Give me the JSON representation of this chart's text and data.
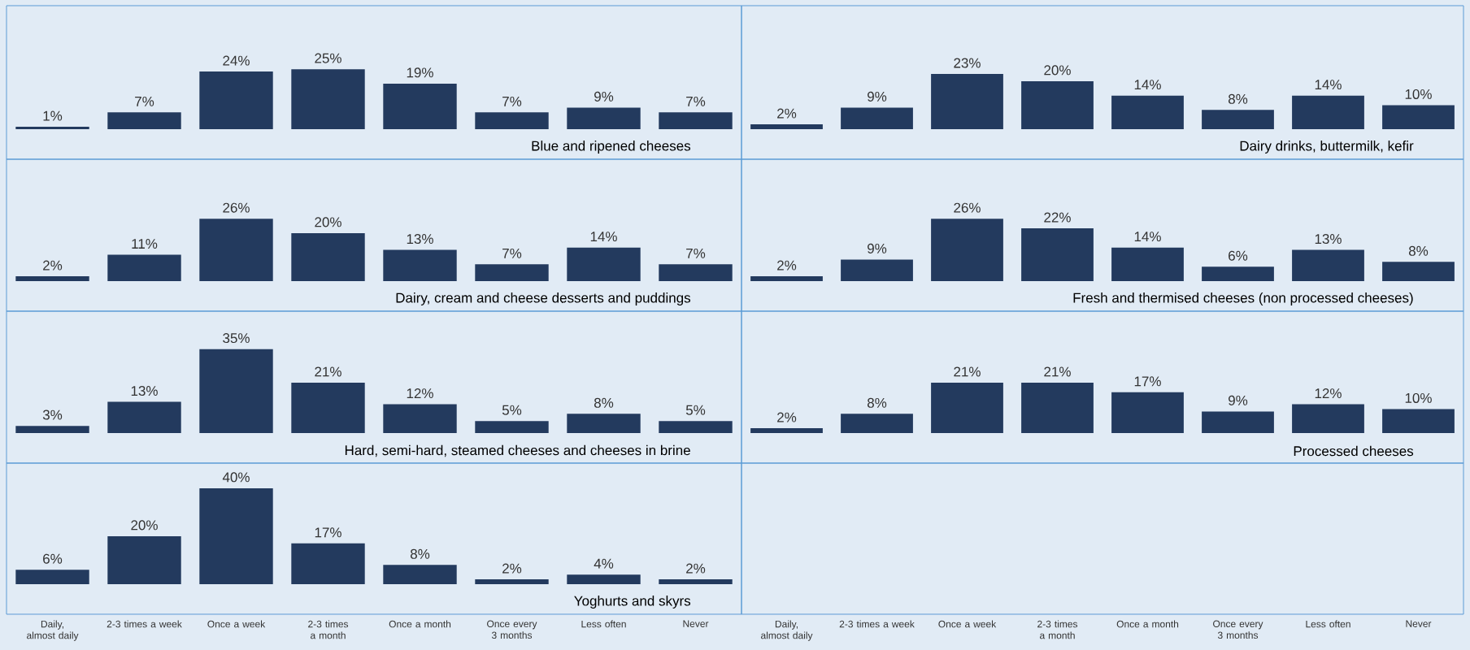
{
  "chart_data": [
    {
      "type": "bar",
      "categories": [
        null,
        null,
        null,
        null,
        null,
        null,
        null,
        null
      ],
      "values": [
        1,
        7,
        24,
        25,
        19,
        7,
        9,
        7
      ],
      "value_labels": [
        "1%",
        "7%",
        "24%",
        "25%",
        "19%",
        "7%",
        "9%",
        "7%"
      ],
      "color": "#233a5e",
      "annotations": [
        "Blue and ripened cheeses"
      ],
      "tick_labels": false
    },
    {
      "type": "bar",
      "categories": [
        null,
        null,
        null,
        null,
        null,
        null,
        null,
        null
      ],
      "values": [
        2,
        9,
        23,
        20,
        14,
        8,
        14,
        10
      ],
      "value_labels": [
        "2%",
        "9%",
        "23%",
        "20%",
        "14%",
        "8%",
        "14%",
        "10%"
      ],
      "color": "#233a5e",
      "annotations": [
        "Dairy drinks, buttermilk, kefir"
      ],
      "tick_labels": false
    },
    {
      "type": "bar",
      "categories": [
        null,
        null,
        null,
        null,
        null,
        null,
        null,
        null
      ],
      "values": [
        2,
        11,
        26,
        20,
        13,
        7,
        14,
        7
      ],
      "value_labels": [
        "2%",
        "11%",
        "26%",
        "20%",
        "13%",
        "7%",
        "14%",
        "7%"
      ],
      "color": "#233a5e",
      "annotations": [
        "Dairy, cream and cheese desserts and puddings"
      ],
      "tick_labels": false
    },
    {
      "type": "bar",
      "categories": [
        null,
        null,
        null,
        null,
        null,
        null,
        null,
        null
      ],
      "values": [
        2,
        9,
        26,
        22,
        14,
        6,
        13,
        8
      ],
      "value_labels": [
        "2%",
        "9%",
        "26%",
        "22%",
        "14%",
        "6%",
        "13%",
        "8%"
      ],
      "color": "#233a5e",
      "annotations": [
        "Fresh and thermised cheeses (non processed cheeses)"
      ],
      "tick_labels": false
    },
    {
      "type": "bar",
      "categories": [
        null,
        null,
        null,
        null,
        null,
        null,
        null,
        null
      ],
      "values": [
        3,
        13,
        35,
        21,
        12,
        5,
        8,
        5
      ],
      "value_labels": [
        "3%",
        "13%",
        "35%",
        "21%",
        "12%",
        "5%",
        "8%",
        "5%"
      ],
      "color": "#233a5e",
      "annotations": [
        "Hard, semi-hard, steamed cheeses and cheeses in brine"
      ],
      "tick_labels": false
    },
    {
      "type": "bar",
      "categories": [
        "Daily, almost daily",
        "2-3 times a week",
        "Once a week",
        "2-3 times a month",
        "Once a month",
        "Once every 3 months",
        "Less often",
        "Never"
      ],
      "values": [
        2,
        8,
        21,
        21,
        17,
        9,
        12,
        10
      ],
      "value_labels": [
        "2%",
        "8%",
        "21%",
        "21%",
        "17%",
        "9%",
        "12%",
        "10%"
      ],
      "color": "#233a5e",
      "annotations": [
        "Processed cheeses"
      ],
      "tick_labels": "x"
    },
    {
      "type": "bar",
      "categories": [
        "Daily, almost daily",
        "2-3 times a week",
        "Once a week",
        "2-3 times a month",
        "Once a month",
        "Once every 3 months",
        "Less often",
        "Never"
      ],
      "values": [
        6,
        20,
        40,
        17,
        8,
        2,
        4,
        2
      ],
      "value_labels": [
        "6%",
        "20%",
        "40%",
        "17%",
        "8%",
        "2%",
        "4%",
        "2%"
      ],
      "color": "#233a5e",
      "annotations": [
        "Yoghurts and skyrs"
      ],
      "tick_labels": "x"
    }
  ]
}
